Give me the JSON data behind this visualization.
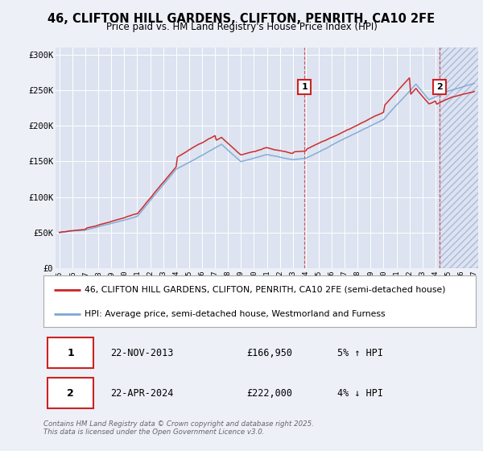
{
  "title_line1": "46, CLIFTON HILL GARDENS, CLIFTON, PENRITH, CA10 2FE",
  "title_line2": "Price paid vs. HM Land Registry's House Price Index (HPI)",
  "background_color": "#eef0f8",
  "plot_bg_color": "#dde3f0",
  "grid_color": "#ffffff",
  "hpi_color": "#7ba7d4",
  "price_color": "#cc2222",
  "marker1_date_x": 2013.9,
  "marker2_date_x": 2024.33,
  "marker1_label": "1",
  "marker2_label": "2",
  "marker1_text": "22-NOV-2013",
  "marker1_amount": "£166,950",
  "marker1_detail": "5% ↑ HPI",
  "marker2_text": "22-APR-2024",
  "marker2_amount": "£222,000",
  "marker2_detail": "4% ↓ HPI",
  "legend_line1": "46, CLIFTON HILL GARDENS, CLIFTON, PENRITH, CA10 2FE (semi-detached house)",
  "legend_line2": "HPI: Average price, semi-detached house, Westmorland and Furness",
  "footnote": "Contains HM Land Registry data © Crown copyright and database right 2025.\nThis data is licensed under the Open Government Licence v3.0.",
  "ylim_min": 0,
  "ylim_max": 310000,
  "xmin": 1995,
  "xmax": 2027
}
